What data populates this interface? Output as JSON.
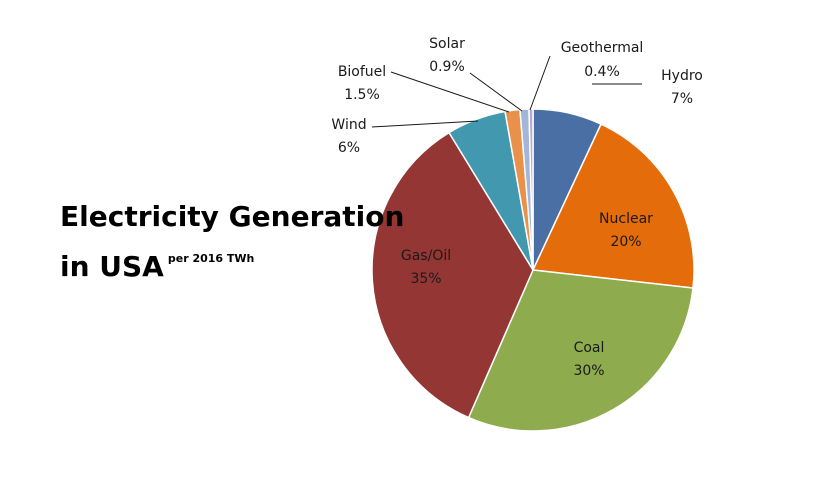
{
  "chart_data": {
    "type": "pie",
    "title_line1": "Electricity Generation",
    "title_line2": "in USA",
    "subtitle": "per 2016 TWh",
    "start_angle_deg": 0,
    "direction": "clockwise",
    "slices": [
      {
        "label": "Hydro",
        "value": 7,
        "value_label": "7%",
        "color": "#4a6fa5"
      },
      {
        "label": "Nuclear",
        "value": 20,
        "value_label": "20%",
        "color": "#e46c0a"
      },
      {
        "label": "Coal",
        "value": 30,
        "value_label": "30%",
        "color": "#8eab4e"
      },
      {
        "label": "Gas/Oil",
        "value": 35,
        "value_label": "35%",
        "color": "#943634"
      },
      {
        "label": "Wind",
        "value": 6,
        "value_label": "6%",
        "color": "#4198af"
      },
      {
        "label": "Biofuel",
        "value": 1.5,
        "value_label": "1.5%",
        "color": "#e9914a"
      },
      {
        "label": "Solar",
        "value": 0.9,
        "value_label": "0.9%",
        "color": "#a3b6d9"
      },
      {
        "label": "Geothermal",
        "value": 0.4,
        "value_label": "0.4%",
        "color": "#b6a9d0"
      }
    ]
  }
}
